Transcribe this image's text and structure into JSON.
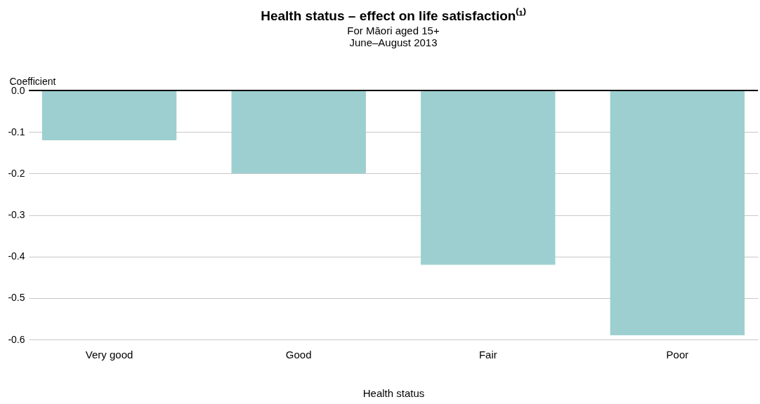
{
  "chart_data": {
    "type": "bar",
    "title": "Health status – effect on life satisfaction⁽¹⁾",
    "subtitle": "For Māori aged 15+\nJune–August 2013",
    "xlabel": "Health status",
    "ylabel": "Coefficient",
    "categories": [
      "Very good",
      "Good",
      "Fair",
      "Poor"
    ],
    "values": [
      -0.12,
      -0.2,
      -0.42,
      -0.59
    ],
    "color": "#9dcfd0",
    "ylim": [
      -0.6,
      0
    ],
    "yticks": [
      {
        "value": -0.6,
        "label": "-0.6"
      },
      {
        "value": -0.5,
        "label": "-0.5"
      },
      {
        "value": -0.4,
        "label": "-0.4"
      },
      {
        "value": -0.3,
        "label": "-0.3"
      },
      {
        "value": -0.2,
        "label": "-0.2"
      },
      {
        "value": -0.1,
        "label": "-0.1"
      },
      {
        "value": 0,
        "label": "0.0"
      }
    ],
    "grid": "y"
  }
}
